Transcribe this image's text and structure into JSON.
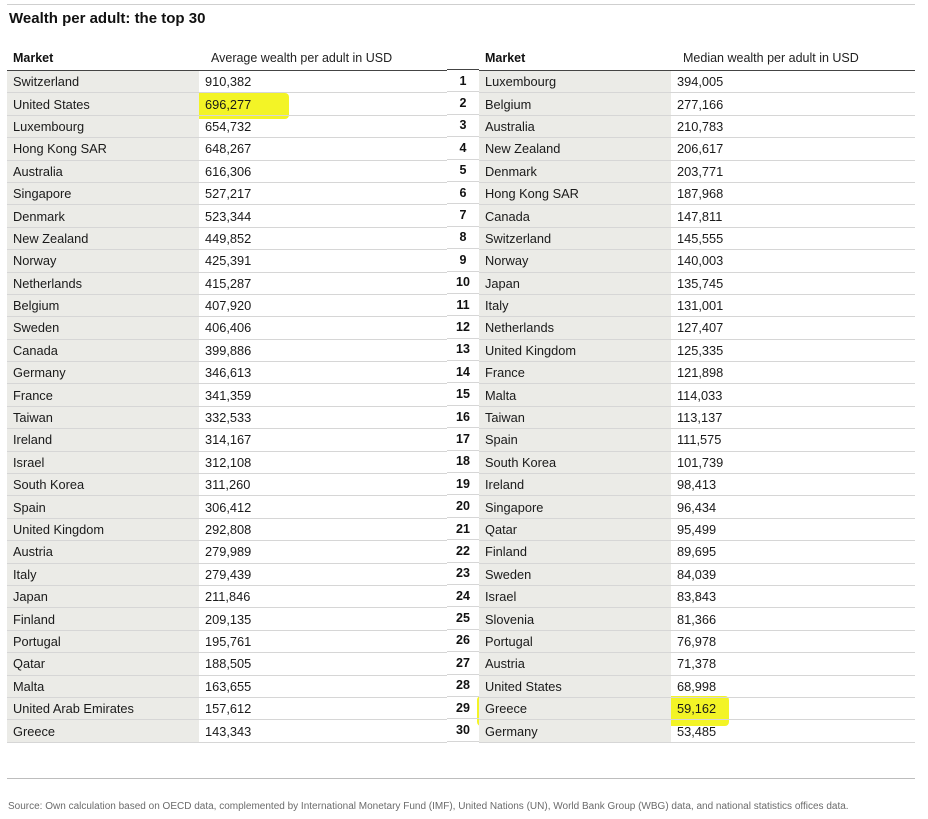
{
  "title": "Wealth per adult: the top 30",
  "left_table": {
    "header_market": "Market",
    "header_value": "Average wealth per adult in USD",
    "rows": [
      {
        "market": "Switzerland",
        "value": "910,382"
      },
      {
        "market": "United States",
        "value": "696,277"
      },
      {
        "market": "Luxembourg",
        "value": "654,732"
      },
      {
        "market": "Hong Kong SAR",
        "value": "648,267"
      },
      {
        "market": "Australia",
        "value": "616,306"
      },
      {
        "market": "Singapore",
        "value": "527,217"
      },
      {
        "market": "Denmark",
        "value": "523,344"
      },
      {
        "market": "New Zealand",
        "value": "449,852"
      },
      {
        "market": "Norway",
        "value": "425,391"
      },
      {
        "market": "Netherlands",
        "value": "415,287"
      },
      {
        "market": "Belgium",
        "value": "407,920"
      },
      {
        "market": "Sweden",
        "value": "406,406"
      },
      {
        "market": "Canada",
        "value": "399,886"
      },
      {
        "market": "Germany",
        "value": "346,613"
      },
      {
        "market": "France",
        "value": "341,359"
      },
      {
        "market": "Taiwan",
        "value": "332,533"
      },
      {
        "market": "Ireland",
        "value": "314,167"
      },
      {
        "market": "Israel",
        "value": "312,108"
      },
      {
        "market": "South Korea",
        "value": "311,260"
      },
      {
        "market": "Spain",
        "value": "306,412"
      },
      {
        "market": "United Kingdom",
        "value": "292,808"
      },
      {
        "market": "Austria",
        "value": "279,989"
      },
      {
        "market": "Italy",
        "value": "279,439"
      },
      {
        "market": "Japan",
        "value": "211,846"
      },
      {
        "market": "Finland",
        "value": "209,135"
      },
      {
        "market": "Portugal",
        "value": "195,761"
      },
      {
        "market": "Qatar",
        "value": "188,505"
      },
      {
        "market": "Malta",
        "value": "163,655"
      },
      {
        "market": "United Arab Emirates",
        "value": "157,612"
      },
      {
        "market": "Greece",
        "value": "143,343"
      }
    ]
  },
  "ranks": [
    "1",
    "2",
    "3",
    "4",
    "5",
    "6",
    "7",
    "8",
    "9",
    "10",
    "11",
    "12",
    "13",
    "14",
    "15",
    "16",
    "17",
    "18",
    "19",
    "20",
    "21",
    "22",
    "23",
    "24",
    "25",
    "26",
    "27",
    "28",
    "29",
    "30"
  ],
  "right_table": {
    "header_market": "Market",
    "header_value": "Median wealth per adult in USD",
    "rows": [
      {
        "market": "Luxembourg",
        "value": "394,005"
      },
      {
        "market": "Belgium",
        "value": "277,166"
      },
      {
        "market": "Australia",
        "value": "210,783"
      },
      {
        "market": "New Zealand",
        "value": "206,617"
      },
      {
        "market": "Denmark",
        "value": "203,771"
      },
      {
        "market": "Hong Kong SAR",
        "value": "187,968"
      },
      {
        "market": "Canada",
        "value": "147,811"
      },
      {
        "market": "Switzerland",
        "value": "145,555"
      },
      {
        "market": "Norway",
        "value": "140,003"
      },
      {
        "market": "Japan",
        "value": "135,745"
      },
      {
        "market": "Italy",
        "value": "131,001"
      },
      {
        "market": "Netherlands",
        "value": "127,407"
      },
      {
        "market": "United Kingdom",
        "value": "125,335"
      },
      {
        "market": "France",
        "value": "121,898"
      },
      {
        "market": "Malta",
        "value": "114,033"
      },
      {
        "market": "Taiwan",
        "value": "113,137"
      },
      {
        "market": "Spain",
        "value": "111,575"
      },
      {
        "market": "South Korea",
        "value": "101,739"
      },
      {
        "market": "Ireland",
        "value": "98,413"
      },
      {
        "market": "Singapore",
        "value": "96,434"
      },
      {
        "market": "Qatar",
        "value": "95,499"
      },
      {
        "market": "Finland",
        "value": "89,695"
      },
      {
        "market": "Sweden",
        "value": "84,039"
      },
      {
        "market": "Israel",
        "value": "83,843"
      },
      {
        "market": "Slovenia",
        "value": "81,366"
      },
      {
        "market": "Portugal",
        "value": "76,978"
      },
      {
        "market": "Austria",
        "value": "71,378"
      },
      {
        "market": "United States",
        "value": "68,998"
      },
      {
        "market": "Greece",
        "value": "59,162"
      },
      {
        "market": "Germany",
        "value": "53,485"
      }
    ]
  },
  "highlight_color": "#f1f300",
  "source": "Source: Own calculation based on OECD data, complemented by International Monetary Fund (IMF), United Nations (UN), World Bank Group (WBG) data, and national statistics offices data."
}
